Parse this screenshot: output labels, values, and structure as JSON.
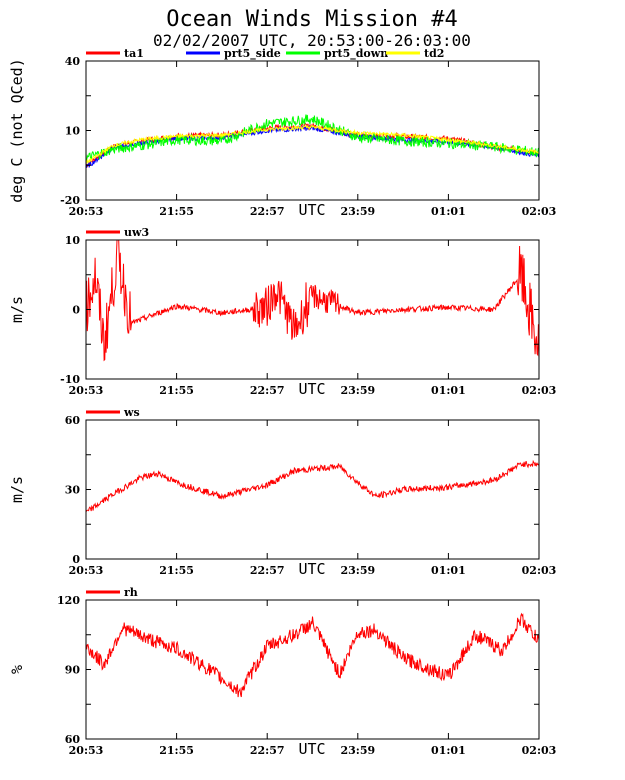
{
  "title": "Ocean Winds Mission #4",
  "subtitle": "02/02/2007  UTC, 20:53:00-26:03:00",
  "chart_data": [
    {
      "type": "line",
      "ylabel": "deg C (not QCed)",
      "xlabel": "UTC",
      "ylim": [
        -20,
        40
      ],
      "yticks": [
        "40",
        "10",
        "-20"
      ],
      "xticks": [
        "20:53",
        "21:55",
        "22:57",
        "23:59",
        "01:01",
        "02:03"
      ],
      "x": [
        0,
        0.3,
        0.6,
        1.0,
        1.5,
        2.0,
        2.5,
        3.0,
        3.5,
        4.0,
        4.5,
        5.0
      ],
      "series": [
        {
          "name": "ta1",
          "color": "#ff0000",
          "values": [
            -5,
            3,
            5.5,
            7.5,
            8,
            11,
            12,
            8,
            7.5,
            6.5,
            3,
            0
          ]
        },
        {
          "name": "prt5_side",
          "color": "#0000ff",
          "values": [
            -6,
            2.5,
            4.5,
            6.5,
            7,
            10,
            11,
            7.5,
            6,
            5,
            3,
            -1
          ]
        },
        {
          "name": "prt5_down",
          "color": "#00ff00",
          "values": [
            -2,
            2,
            3.5,
            6,
            5.5,
            13,
            15,
            7,
            5.5,
            4.5,
            3,
            0.5
          ]
        },
        {
          "name": "td2",
          "color": "#ffff00",
          "values": [
            -4,
            3.5,
            6,
            7.5,
            8,
            10.5,
            11.5,
            9,
            8,
            6,
            3.5,
            0.5
          ]
        }
      ]
    },
    {
      "type": "line",
      "ylabel": "m/s",
      "xlabel": "UTC",
      "ylim": [
        -10,
        10
      ],
      "yticks": [
        "10",
        "0",
        "-10"
      ],
      "xticks": [
        "20:53",
        "21:55",
        "22:57",
        "23:59",
        "01:01",
        "02:03"
      ],
      "x": [
        0,
        0.1,
        0.2,
        0.35,
        0.5,
        1.0,
        1.5,
        2.0,
        2.1,
        2.3,
        2.5,
        3.0,
        3.5,
        4.0,
        4.5,
        4.8,
        5.0
      ],
      "series": [
        {
          "name": "uw3",
          "color": "#ff0000",
          "values": [
            0,
            5,
            -5,
            8,
            -2,
            0.5,
            -0.5,
            0.3,
            3,
            -3,
            2,
            -0.5,
            0,
            0.3,
            0,
            5,
            -6
          ]
        }
      ]
    },
    {
      "type": "line",
      "ylabel": "m/s",
      "xlabel": "UTC",
      "ylim": [
        0,
        60
      ],
      "yticks": [
        "60",
        "30",
        "0"
      ],
      "xticks": [
        "20:53",
        "21:55",
        "22:57",
        "23:59",
        "01:01",
        "02:03"
      ],
      "x": [
        0,
        0.3,
        0.6,
        0.8,
        1.0,
        1.5,
        2.0,
        2.3,
        2.8,
        3.0,
        3.2,
        3.5,
        4.0,
        4.5,
        4.8,
        5.0
      ],
      "series": [
        {
          "name": "ws",
          "color": "#ff0000",
          "values": [
            20,
            28,
            35,
            37,
            33,
            27,
            32,
            38,
            40,
            33,
            27,
            30,
            31,
            34,
            41,
            41
          ]
        }
      ]
    },
    {
      "type": "line",
      "ylabel": "%",
      "xlabel": "UTC",
      "ylim": [
        60,
        120
      ],
      "yticks": [
        "120",
        "90",
        "60"
      ],
      "xticks": [
        "20:53",
        "21:55",
        "22:57",
        "23:59",
        "01:01",
        "02:03"
      ],
      "x": [
        0,
        0.2,
        0.4,
        0.7,
        1.0,
        1.4,
        1.7,
        2.0,
        2.3,
        2.5,
        2.8,
        3.0,
        3.2,
        3.5,
        4.0,
        4.3,
        4.6,
        4.8,
        5.0
      ],
      "series": [
        {
          "name": "rh",
          "color": "#ff0000",
          "values": [
            100,
            92,
            108,
            103,
            99,
            89,
            80,
            100,
            105,
            110,
            88,
            106,
            107,
            95,
            87,
            105,
            98,
            112,
            102
          ]
        }
      ]
    }
  ]
}
